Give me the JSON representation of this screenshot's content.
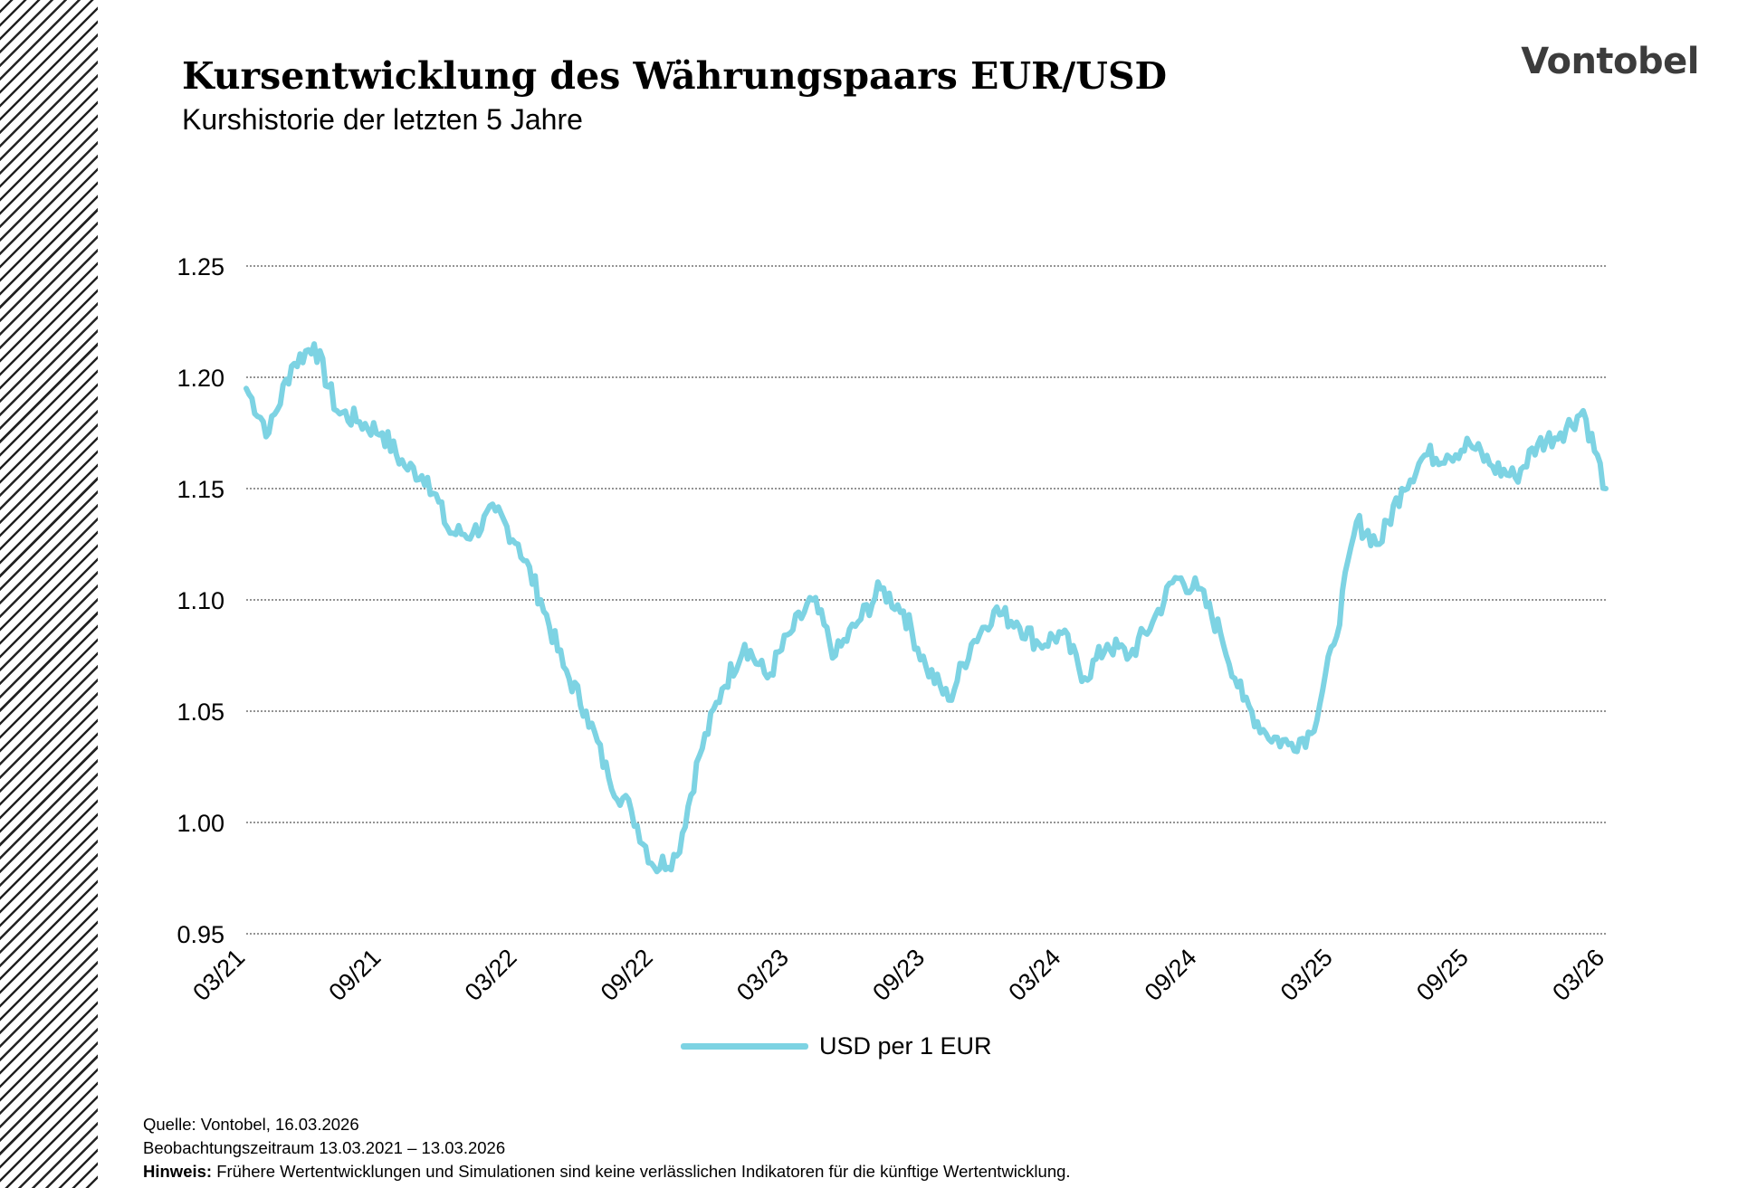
{
  "header": {
    "title": "Kursentwicklung des Währungspaars EUR/USD",
    "subtitle": "Kurshistorie der letzten 5 Jahre",
    "logo": "Vontobel"
  },
  "footer": {
    "source": "Quelle: Vontobel, 16.03.2026",
    "period": "Beobachtungszeitraum  13.03.2021 – 13.03.2026",
    "note_label": "Hinweis:",
    "note_text": " Frühere Wertentwicklungen und Simulationen sind keine verlässlichen Indikatoren für die künftige Wertentwicklung."
  },
  "chart_data": {
    "type": "line",
    "title": "Kursentwicklung des Währungspaars EUR/USD",
    "subtitle": "Kurshistorie der letzten 5 Jahre",
    "xlabel": "",
    "ylabel": "",
    "ylim": [
      0.95,
      1.25
    ],
    "yticks": [
      "1.25",
      "1.20",
      "1.15",
      "1.10",
      "1.05",
      "1.00",
      "0.95"
    ],
    "xticks": [
      "03/21",
      "09/21",
      "03/22",
      "09/22",
      "03/23",
      "09/23",
      "03/24",
      "09/24",
      "03/25",
      "09/25",
      "03/26"
    ],
    "grid": true,
    "legend_position": "bottom",
    "series": [
      {
        "name": "USD per 1 EUR",
        "color": "#7dd3e3",
        "x": [
          "03/21",
          "04/21",
          "05/21",
          "06/21",
          "07/21",
          "08/21",
          "09/21",
          "10/21",
          "11/21",
          "12/21",
          "01/22",
          "02/22",
          "03/22",
          "04/22",
          "05/22",
          "06/22",
          "07/22",
          "08/22",
          "09/22",
          "10/22",
          "11/22",
          "12/22",
          "01/23",
          "02/23",
          "03/23",
          "04/23",
          "05/23",
          "06/23",
          "07/23",
          "08/23",
          "09/23",
          "10/23",
          "11/23",
          "12/23",
          "01/24",
          "02/24",
          "03/24",
          "04/24",
          "05/24",
          "06/24",
          "07/24",
          "08/24",
          "09/24",
          "10/24",
          "11/24",
          "12/24",
          "01/25",
          "02/25",
          "03/25",
          "04/25",
          "05/25",
          "06/25",
          "07/25",
          "08/25",
          "09/25",
          "10/25",
          "11/25",
          "12/25",
          "01/26",
          "02/26",
          "03/26"
        ],
        "values": [
          1.195,
          1.175,
          1.205,
          1.215,
          1.185,
          1.18,
          1.175,
          1.16,
          1.155,
          1.13,
          1.13,
          1.14,
          1.125,
          1.1,
          1.07,
          1.05,
          1.02,
          1.005,
          0.98,
          0.985,
          1.03,
          1.06,
          1.08,
          1.065,
          1.085,
          1.1,
          1.075,
          1.09,
          1.105,
          1.095,
          1.07,
          1.055,
          1.08,
          1.095,
          1.09,
          1.08,
          1.085,
          1.065,
          1.08,
          1.075,
          1.09,
          1.11,
          1.105,
          1.085,
          1.055,
          1.04,
          1.035,
          1.04,
          1.08,
          1.135,
          1.125,
          1.15,
          1.165,
          1.165,
          1.17,
          1.16,
          1.155,
          1.17,
          1.175,
          1.185,
          1.15
        ]
      }
    ]
  }
}
